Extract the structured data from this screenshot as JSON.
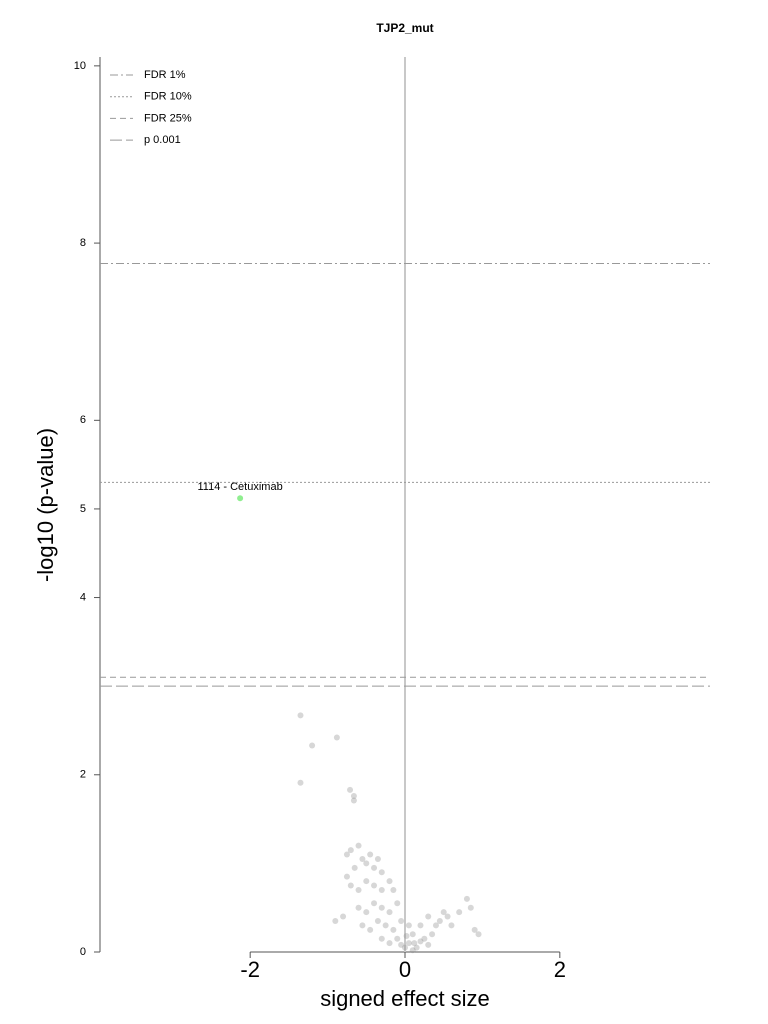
{
  "chart_data": {
    "type": "scatter",
    "title": "TJP2_mut",
    "xlabel": "signed effect size",
    "ylabel": "-log10 (p-value)",
    "xlim": [
      -3.94,
      3.94
    ],
    "ylim": [
      0,
      10.1
    ],
    "xticks": [
      -2,
      0,
      2
    ],
    "yticks": [
      0,
      2,
      4,
      5,
      6,
      8,
      10
    ],
    "vline": 0,
    "hlines": [
      {
        "name": "FDR 1%",
        "value": 7.77,
        "style": "dashdot"
      },
      {
        "name": "FDR 10%",
        "value": 5.3,
        "style": "dotted"
      },
      {
        "name": "FDR 25%",
        "value": 3.1,
        "style": "dashed"
      },
      {
        "name": "p 0.001",
        "value": 3.0,
        "style": "longdash"
      }
    ],
    "legend": "upper left",
    "points": {
      "color": "#8c8c8c",
      "x": [
        -1.35,
        -1.2,
        -0.88,
        -1.35,
        -0.71,
        -0.66,
        -0.66,
        -0.75,
        -0.7,
        -0.6,
        -0.55,
        -0.5,
        -0.45,
        -0.4,
        -0.35,
        -0.3,
        -0.65,
        -0.75,
        -0.7,
        -0.6,
        -0.5,
        -0.4,
        -0.3,
        -0.2,
        -0.15,
        -0.8,
        -0.6,
        -0.5,
        -0.4,
        -0.3,
        -0.2,
        -0.1,
        -0.55,
        -0.45,
        -0.35,
        -0.25,
        -0.15,
        -0.05,
        0.05,
        -0.3,
        -0.2,
        -0.1,
        0,
        0.05,
        0.1,
        0.15,
        0.2,
        0.25,
        0.3,
        0.35,
        0.4,
        0.45,
        0.5,
        0.55,
        0.6,
        0.3,
        0.2,
        0.7,
        0.8,
        0.85,
        0.9,
        0.95,
        -0.9,
        0.1,
        -0.05,
        0.02,
        0.12
      ],
      "y": [
        2.67,
        2.33,
        2.42,
        1.91,
        1.83,
        1.76,
        1.71,
        1.1,
        1.15,
        1.2,
        1.05,
        1.0,
        1.1,
        0.95,
        1.05,
        0.9,
        0.95,
        0.85,
        0.75,
        0.7,
        0.8,
        0.75,
        0.7,
        0.8,
        0.7,
        0.4,
        0.5,
        0.45,
        0.55,
        0.5,
        0.45,
        0.55,
        0.3,
        0.25,
        0.35,
        0.3,
        0.25,
        0.35,
        0.3,
        0.15,
        0.1,
        0.15,
        0.05,
        0.1,
        0.2,
        0.05,
        0.12,
        0.15,
        0.08,
        0.2,
        0.3,
        0.35,
        0.45,
        0.4,
        0.3,
        0.4,
        0.3,
        0.45,
        0.6,
        0.5,
        0.25,
        0.2,
        0.35,
        0.02,
        0.08,
        0.18,
        0.1
      ]
    },
    "highlight": {
      "x": -2.13,
      "y": 5.12,
      "label": "1114 - Cetuximab",
      "color": "#90ee90"
    }
  }
}
